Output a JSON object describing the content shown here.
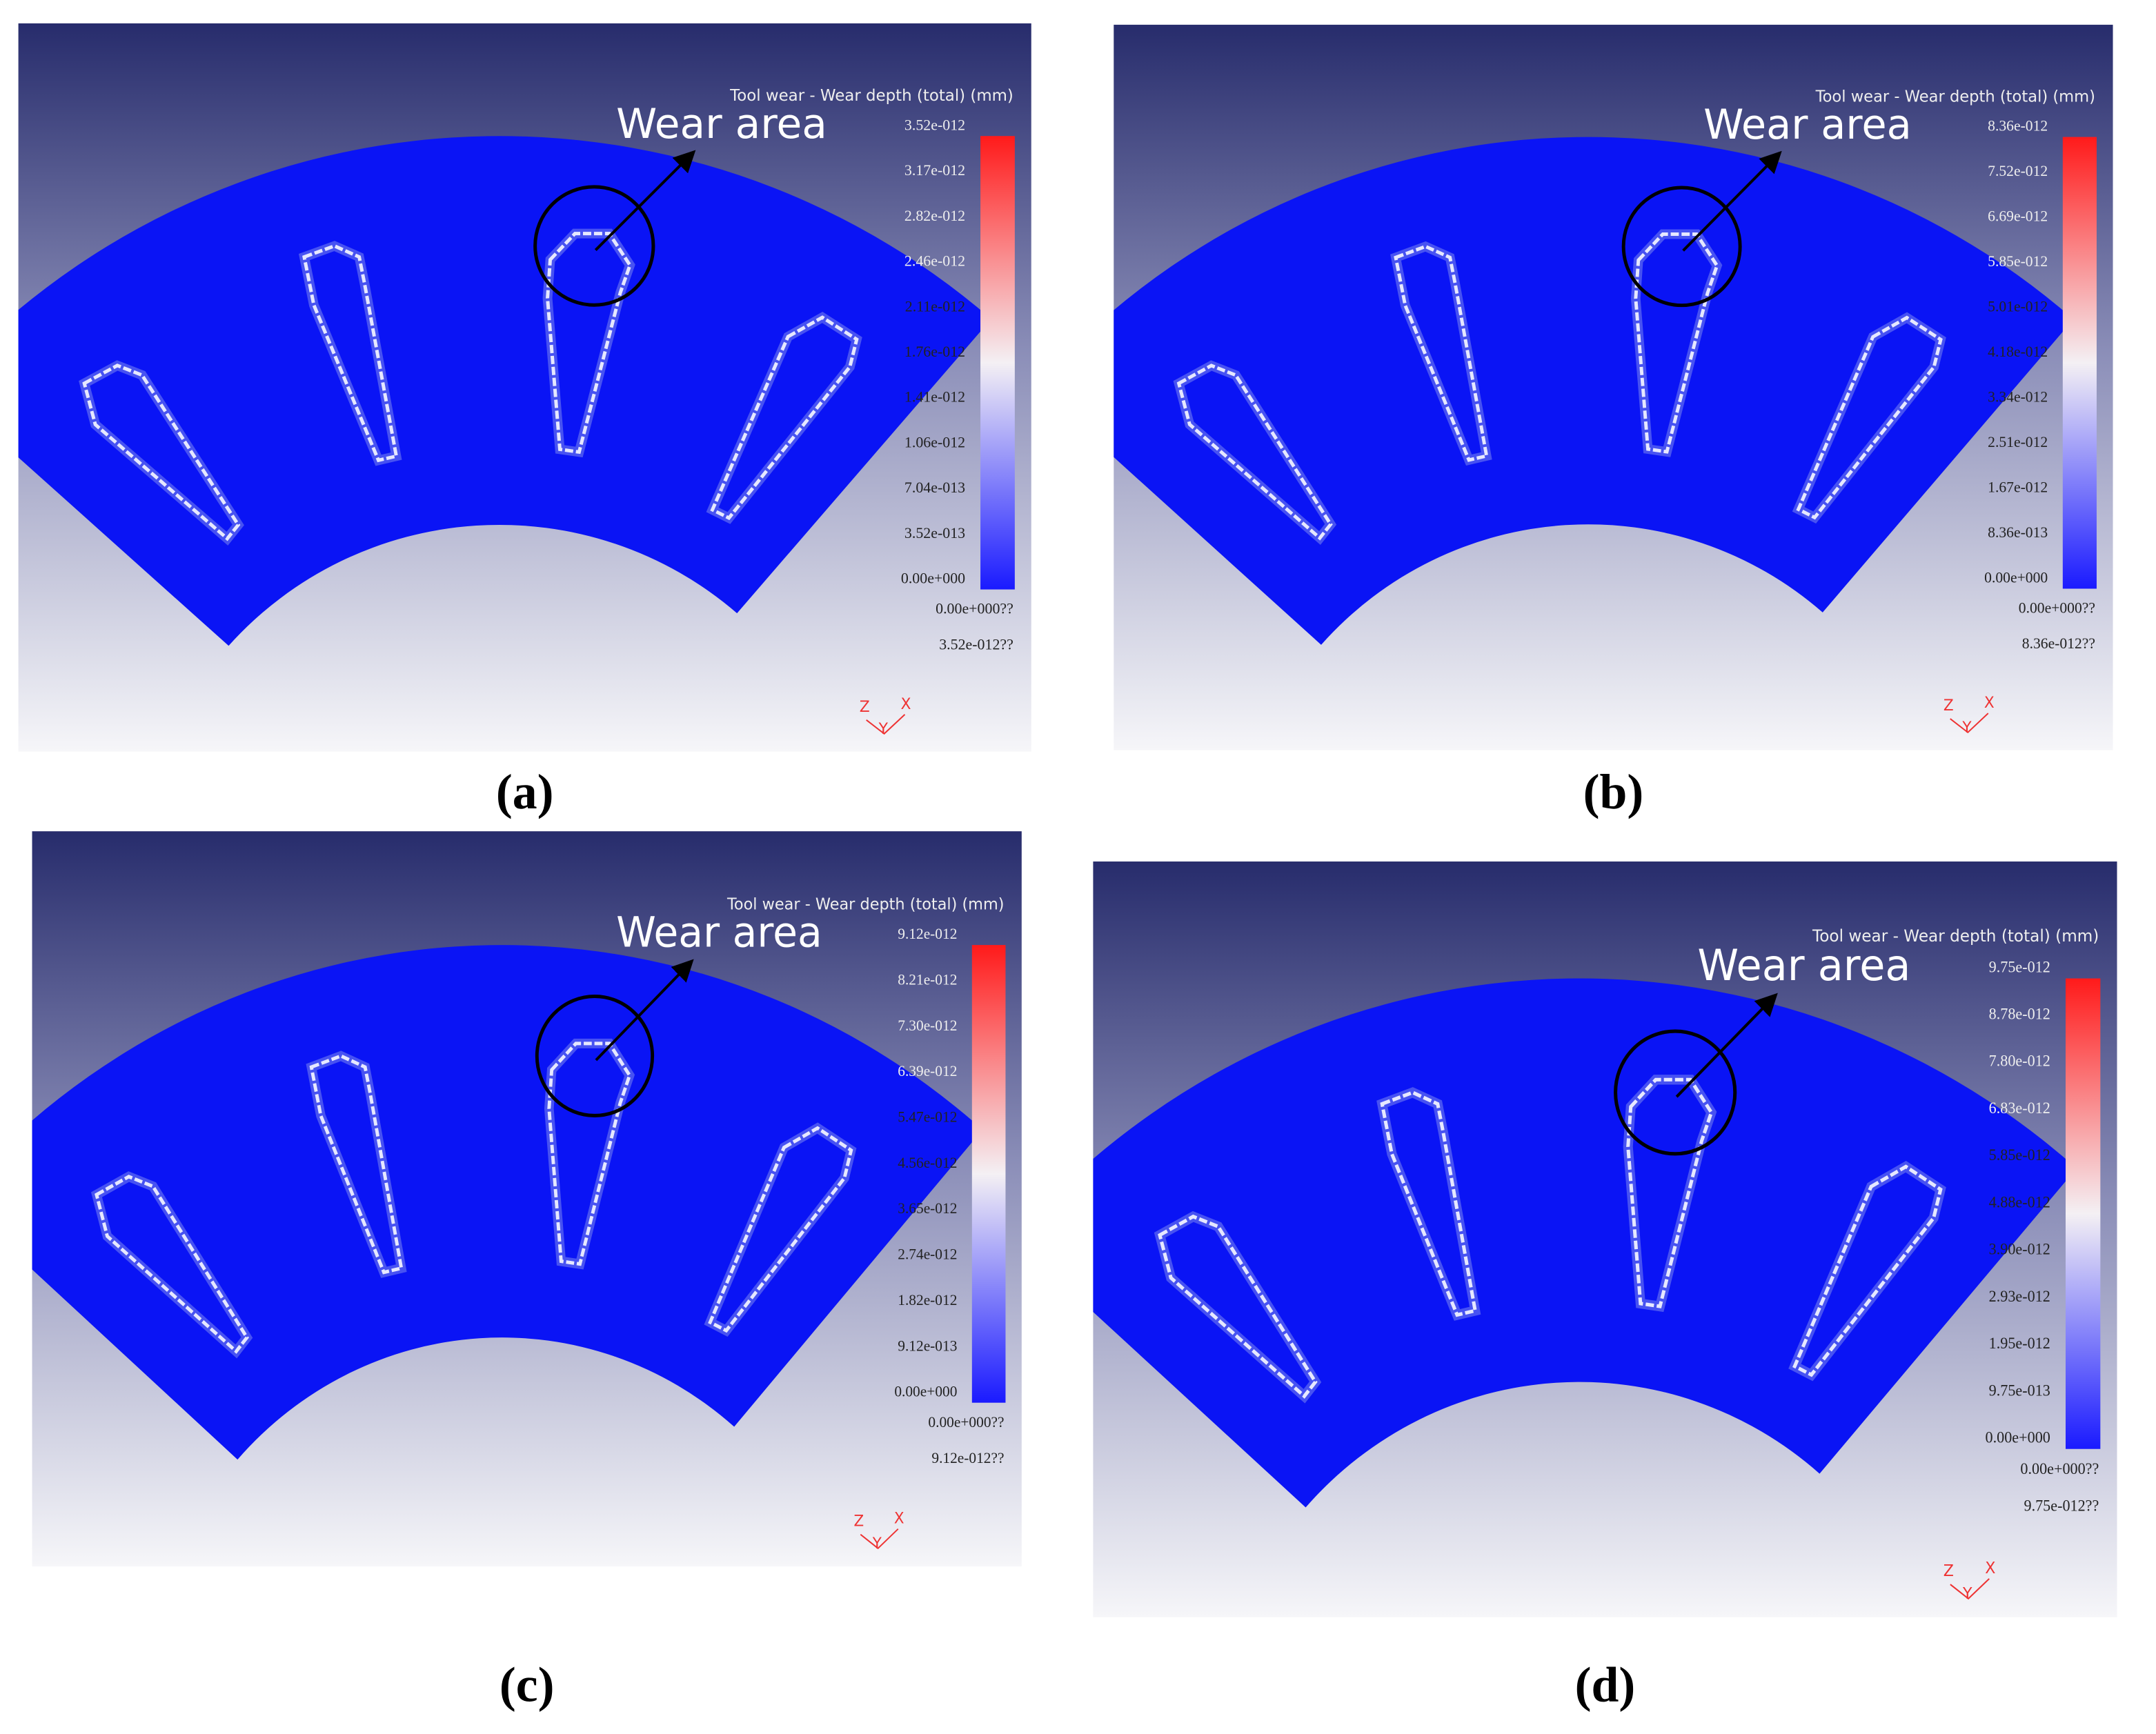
{
  "panels": [
    {
      "title": "Tool wear - Wear depth (total) (mm)",
      "annotation": "Wear area",
      "colorbar_ticks": [
        "3.52e-012",
        "3.17e-012",
        "2.82e-012",
        "2.46e-012",
        "2.11e-012",
        "1.76e-012",
        "1.41e-012",
        "1.06e-012",
        "7.04e-013",
        "3.52e-013",
        "0.00e+000"
      ],
      "range_min": "0.00e+000??",
      "range_max": "3.52e-012??",
      "axes": {
        "z": "Z",
        "x": "X",
        "y": "Y"
      },
      "caption": "(a)"
    },
    {
      "title": "Tool wear - Wear depth (total) (mm)",
      "annotation": "Wear area",
      "colorbar_ticks": [
        "8.36e-012",
        "7.52e-012",
        "6.69e-012",
        "5.85e-012",
        "5.01e-012",
        "4.18e-012",
        "3.34e-012",
        "2.51e-012",
        "1.67e-012",
        "8.36e-013",
        "0.00e+000"
      ],
      "range_min": "0.00e+000??",
      "range_max": "8.36e-012??",
      "axes": {
        "z": "Z",
        "x": "X",
        "y": "Y"
      },
      "caption": "(b)"
    },
    {
      "title": "Tool wear - Wear depth (total) (mm)",
      "annotation": "Wear area",
      "colorbar_ticks": [
        "9.12e-012",
        "8.21e-012",
        "7.30e-012",
        "6.39e-012",
        "5.47e-012",
        "4.56e-012",
        "3.65e-012",
        "2.74e-012",
        "1.82e-012",
        "9.12e-013",
        "0.00e+000"
      ],
      "range_min": "0.00e+000??",
      "range_max": "9.12e-012??",
      "axes": {
        "z": "Z",
        "x": "X",
        "y": "Y"
      },
      "caption": "(c)"
    },
    {
      "title": "Tool wear - Wear depth (total) (mm)",
      "annotation": "Wear area",
      "colorbar_ticks": [
        "9.75e-012",
        "8.78e-012",
        "7.80e-012",
        "6.83e-012",
        "5.85e-012",
        "4.88e-012",
        "3.90e-012",
        "2.93e-012",
        "1.95e-012",
        "9.75e-013",
        "0.00e+000"
      ],
      "range_min": "0.00e+000??",
      "range_max": "9.75e-012??",
      "axes": {
        "z": "Z",
        "x": "X",
        "y": "Y"
      },
      "caption": "(d)"
    }
  ]
}
